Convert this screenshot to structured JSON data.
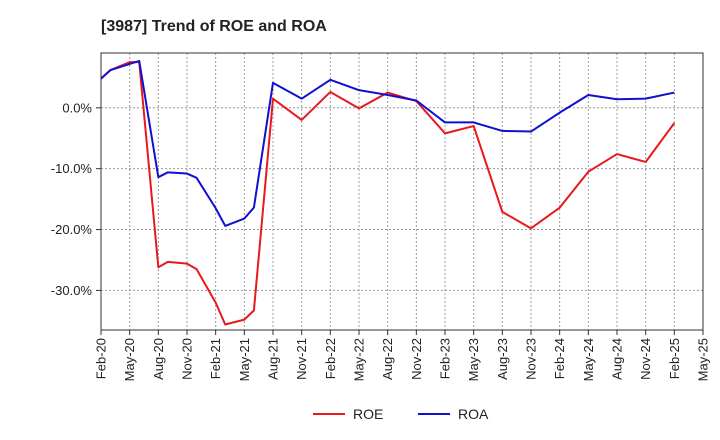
{
  "chart_data": {
    "type": "line",
    "title": "[3987]  Trend of ROE and ROA",
    "xlabel": "",
    "ylabel": "",
    "x_ticks": [
      "Feb-20",
      "May-20",
      "Aug-20",
      "Nov-20",
      "Feb-21",
      "May-21",
      "Aug-21",
      "Nov-21",
      "Feb-22",
      "May-22",
      "Aug-22",
      "Nov-22",
      "Feb-23",
      "May-23",
      "Aug-23",
      "Nov-23",
      "Feb-24",
      "May-24",
      "Aug-24",
      "Nov-24",
      "Feb-25",
      "May-25"
    ],
    "y_ticks": [
      {
        "value": 0,
        "label": "0.0%"
      },
      {
        "value": -10,
        "label": "-10.0%"
      },
      {
        "value": -20,
        "label": "-20.0%"
      },
      {
        "value": -30,
        "label": "-30.0%"
      }
    ],
    "ylim": [
      -36.5,
      9
    ],
    "grid": true,
    "legend_position": "bottom-center",
    "series": [
      {
        "name": "ROE",
        "color": "#e8191b",
        "points": [
          [
            "Feb-20",
            4.8
          ],
          [
            "Mar-20",
            6.2
          ],
          [
            "May-20",
            7.5
          ],
          [
            "Jun-20",
            7.5
          ],
          [
            "Aug-20",
            -26.2
          ],
          [
            "Sep-20",
            -25.3
          ],
          [
            "Nov-20",
            -25.6
          ],
          [
            "Dec-20",
            -26.5
          ],
          [
            "Feb-21",
            -32.0
          ],
          [
            "Mar-21",
            -35.6
          ],
          [
            "May-21",
            -34.8
          ],
          [
            "Jun-21",
            -33.3
          ],
          [
            "Aug-21",
            1.5
          ],
          [
            "Nov-21",
            -2.0
          ],
          [
            "Feb-22",
            2.6
          ],
          [
            "May-22",
            -0.1
          ],
          [
            "Aug-22",
            2.5
          ],
          [
            "Nov-22",
            1.1
          ],
          [
            "Feb-23",
            -4.2
          ],
          [
            "May-23",
            -3.0
          ],
          [
            "Aug-23",
            -17.1
          ],
          [
            "Nov-23",
            -19.8
          ],
          [
            "Feb-24",
            -16.4
          ],
          [
            "May-24",
            -10.5
          ],
          [
            "Aug-24",
            -7.6
          ],
          [
            "Nov-24",
            -8.9
          ],
          [
            "Feb-25",
            -2.5
          ]
        ]
      },
      {
        "name": "ROA",
        "color": "#1010d0",
        "points": [
          [
            "Feb-20",
            4.8
          ],
          [
            "Mar-20",
            6.2
          ],
          [
            "May-20",
            7.2
          ],
          [
            "Jun-20",
            7.7
          ],
          [
            "Aug-20",
            -11.4
          ],
          [
            "Sep-20",
            -10.6
          ],
          [
            "Nov-20",
            -10.8
          ],
          [
            "Dec-20",
            -11.5
          ],
          [
            "Feb-21",
            -16.5
          ],
          [
            "Mar-21",
            -19.4
          ],
          [
            "May-21",
            -18.2
          ],
          [
            "Jun-21",
            -16.4
          ],
          [
            "Aug-21",
            4.1
          ],
          [
            "Nov-21",
            1.5
          ],
          [
            "Feb-22",
            4.6
          ],
          [
            "May-22",
            2.9
          ],
          [
            "Aug-22",
            2.1
          ],
          [
            "Nov-22",
            1.2
          ],
          [
            "Feb-23",
            -2.4
          ],
          [
            "May-23",
            -2.4
          ],
          [
            "Aug-23",
            -3.8
          ],
          [
            "Nov-23",
            -3.9
          ],
          [
            "Feb-24",
            -0.8
          ],
          [
            "May-24",
            2.1
          ],
          [
            "Aug-24",
            1.4
          ],
          [
            "Nov-24",
            1.5
          ],
          [
            "Feb-25",
            2.5
          ]
        ]
      }
    ]
  }
}
